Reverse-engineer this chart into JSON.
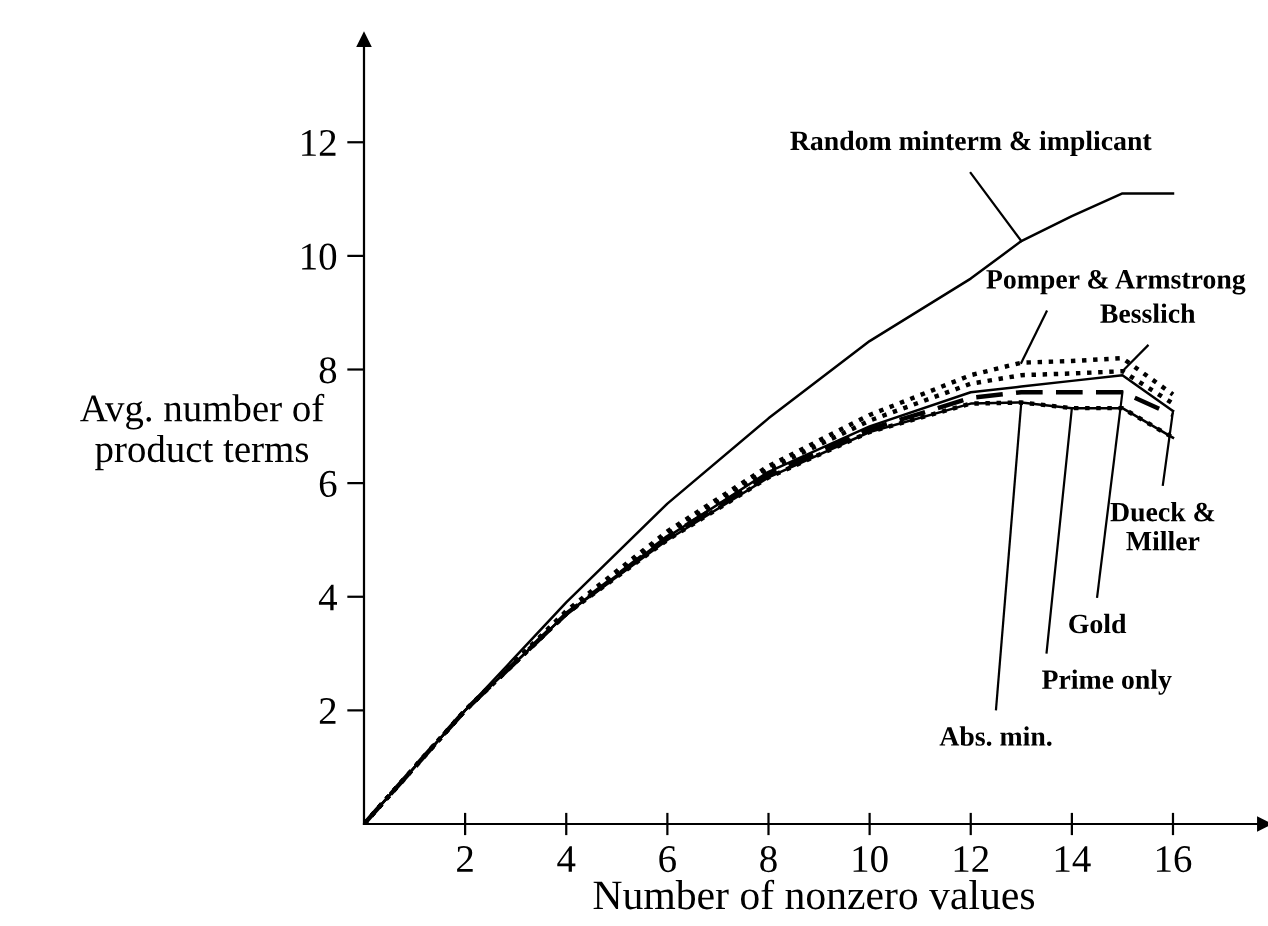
{
  "chart_data": {
    "type": "line",
    "xlabel": "Number of nonzero values",
    "ylabel": "Avg. number of\nproduct terms",
    "x": [
      0,
      2,
      4,
      6,
      8,
      10,
      12,
      13,
      14,
      15,
      16
    ],
    "xlim": [
      0,
      17.8
    ],
    "ylim": [
      0,
      13.8
    ],
    "xticks": [
      2,
      4,
      6,
      8,
      10,
      12,
      14,
      16
    ],
    "yticks": [
      2,
      4,
      6,
      8,
      10,
      12
    ],
    "grid": false,
    "marker": "none",
    "series": [
      {
        "color": "#000000",
        "line_style": "solid",
        "values": [
          0,
          2,
          3.9,
          5.64,
          7.14,
          8.5,
          9.6,
          10.26,
          10.7,
          11.1,
          11.1
        ]
      },
      {
        "color": "#000000",
        "line_style": "dotted",
        "values": [
          0,
          2,
          3.75,
          5.15,
          6.3,
          7.2,
          7.9,
          8.12,
          8.15,
          8.2,
          7.56
        ]
      },
      {
        "color": "#000000",
        "line_style": "dotted",
        "values": [
          0,
          2,
          3.7,
          5.1,
          6.25,
          7.1,
          7.75,
          7.9,
          7.93,
          7.97,
          7.4
        ]
      },
      {
        "color": "#000000",
        "line_style": "solid",
        "values": [
          0,
          2,
          3.7,
          5.05,
          6.2,
          7.0,
          7.6,
          7.7,
          7.8,
          7.9,
          7.27
        ]
      },
      {
        "color": "#000000",
        "line_style": "dashed",
        "values": [
          0,
          2,
          3.7,
          5.05,
          6.15,
          6.95,
          7.5,
          7.6,
          7.6,
          7.6,
          7.2
        ]
      },
      {
        "color": "#000000",
        "line_style": "solid",
        "values": [
          0,
          2,
          3.7,
          5.0,
          6.1,
          6.9,
          7.4,
          7.42,
          7.32,
          7.32,
          6.8
        ]
      },
      {
        "color": "#000000",
        "line_style": "dotted",
        "values": [
          0,
          2,
          3.7,
          5.0,
          6.1,
          6.9,
          7.4,
          7.42,
          7.32,
          7.32,
          6.8
        ]
      }
    ],
    "annotations": [
      {
        "text": "Random minterm & implicant",
        "x": 13,
        "y": 10.26
      },
      {
        "text": "Pomper & Armstrong",
        "x": 13,
        "y": 8.12
      },
      {
        "text": "Besslich",
        "x": 15,
        "y": 7.97
      },
      {
        "text": "Dueck &\nMiller",
        "x": 16,
        "y": 7.27
      },
      {
        "text": "Gold",
        "x": 15,
        "y": 7.6
      },
      {
        "text": "Prime only",
        "x": 14,
        "y": 7.32
      },
      {
        "text": "Abs. min.",
        "x": 13,
        "y": 7.42
      }
    ]
  }
}
